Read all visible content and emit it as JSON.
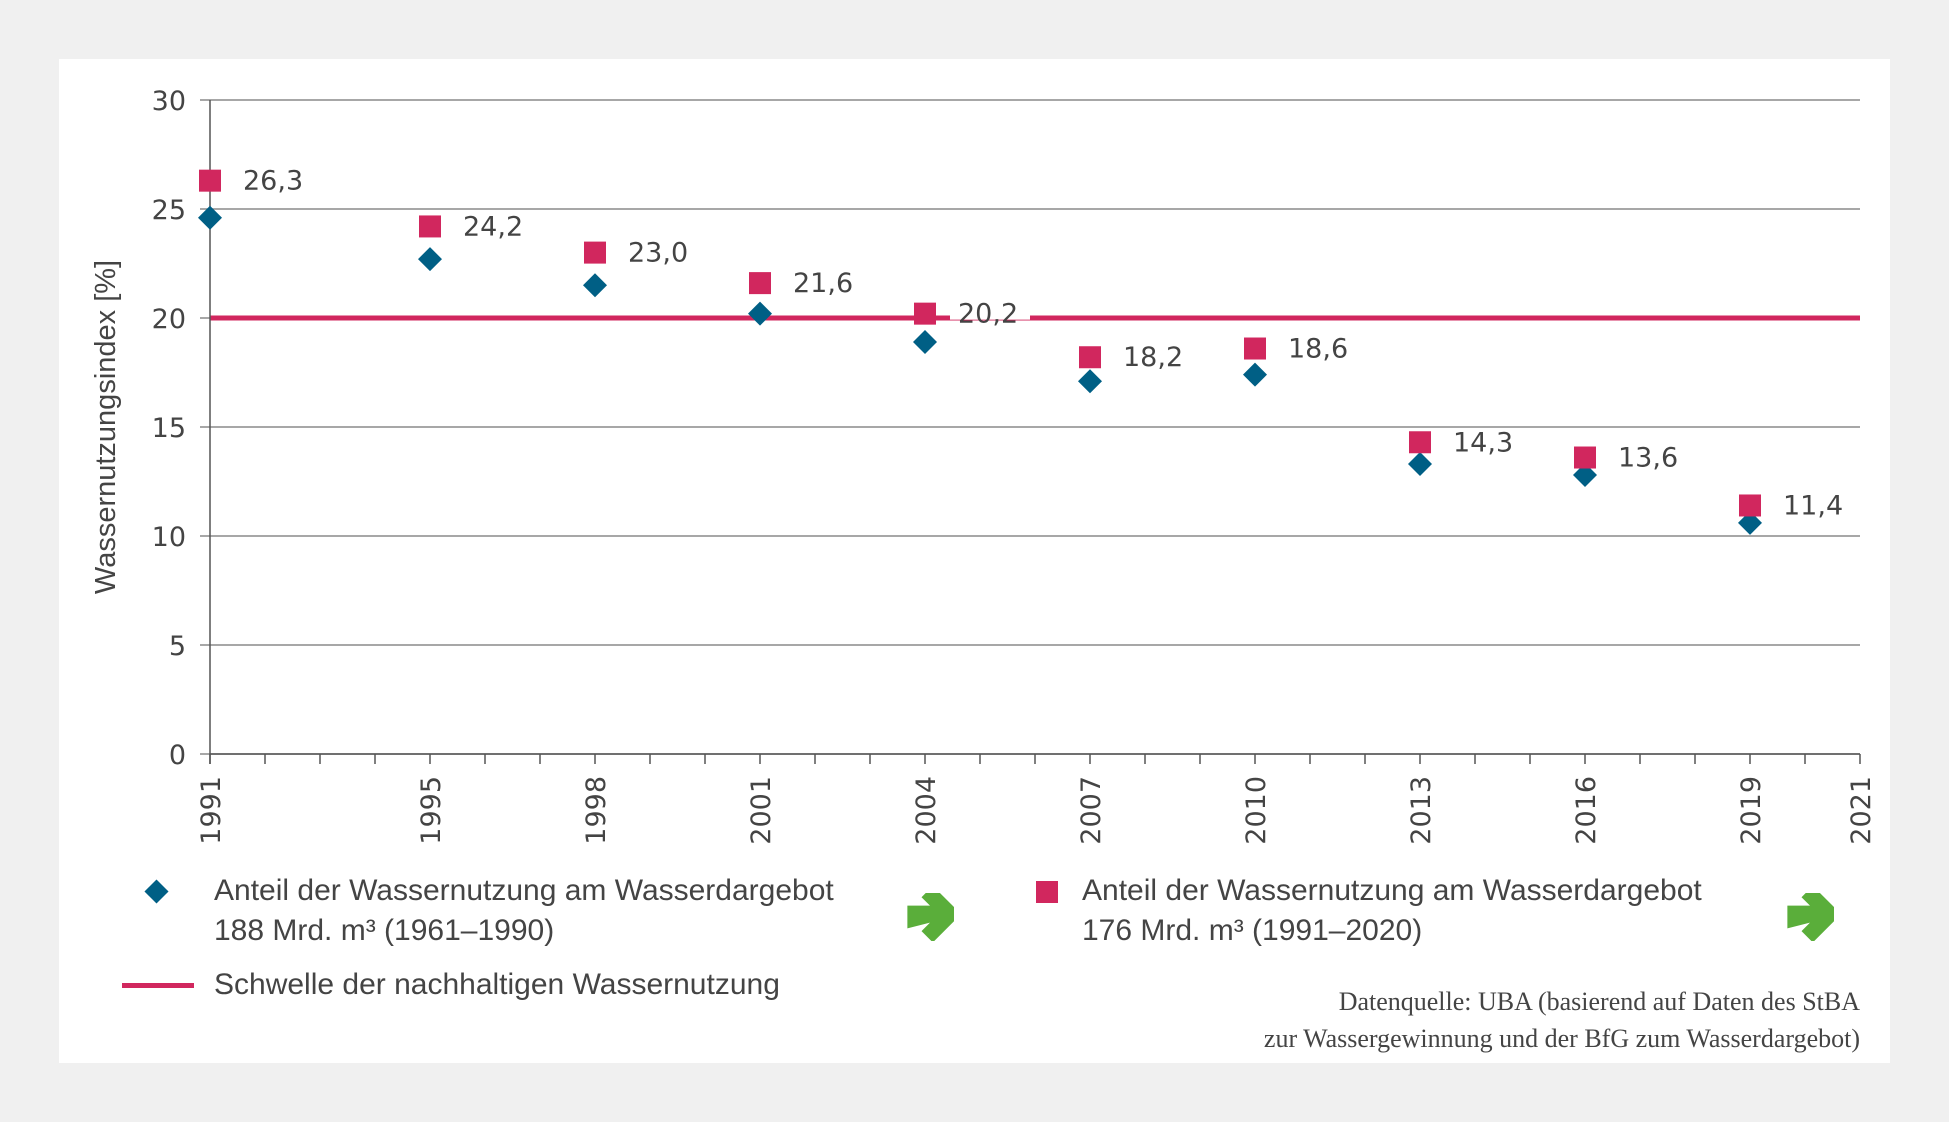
{
  "chart_data": {
    "type": "scatter",
    "title": "",
    "ylabel": "Wassernutzungsindex [%]",
    "xlabel": "",
    "ylim": [
      0,
      30
    ],
    "xlim": [
      1991,
      2021
    ],
    "yticks": [
      0,
      5,
      10,
      15,
      20,
      25,
      30
    ],
    "xtick_labels": [
      "1991",
      "1995",
      "1998",
      "2001",
      "2004",
      "2007",
      "2010",
      "2013",
      "2016",
      "2019",
      "2021"
    ],
    "grid": "horizontal",
    "series": [
      {
        "name": "Anteil der Wassernutzung am Wasserdargebot 188 Mrd. m³ (1961–1990)",
        "marker": "diamond",
        "color": "#005f85",
        "x": [
          1991,
          1995,
          1998,
          2001,
          2004,
          2007,
          2010,
          2013,
          2016,
          2019
        ],
        "values": [
          24.6,
          22.7,
          21.5,
          20.2,
          18.9,
          17.1,
          17.4,
          13.3,
          12.8,
          10.6
        ]
      },
      {
        "name": "Anteil der Wassernutzung am Wasserdargebot 176 Mrd. m³ (1991–2020)",
        "marker": "square",
        "color": "#d1275e",
        "x": [
          1991,
          1995,
          1998,
          2001,
          2004,
          2007,
          2010,
          2013,
          2016,
          2019
        ],
        "values": [
          26.3,
          24.2,
          23.0,
          21.6,
          20.2,
          18.2,
          18.6,
          14.3,
          13.6,
          11.4
        ],
        "labels": [
          "26,3",
          "24,2",
          "23,0",
          "21,6",
          "20,2",
          "18,2",
          "18,6",
          "14,3",
          "13,6",
          "11,4"
        ]
      }
    ],
    "reference_lines": [
      {
        "name": "Schwelle der nachhaltigen Wassernutzung",
        "y": 20,
        "color": "#d1275e"
      }
    ]
  },
  "legend": {
    "series1_line1": "Anteil der Wassernutzung am Wasserdargebot",
    "series1_line2": "188 Mrd. m³ (1961–1990)",
    "series2_line1": "Anteil der Wassernutzung am Wasserdargebot",
    "series2_line2": "176 Mrd. m³ (1991–2020)",
    "threshold": "Schwelle der nachhaltigen Wassernutzung",
    "trend_icon_color": "#5aae3a"
  },
  "source": {
    "line1": "Datenquelle: UBA (basierend auf Daten des StBA",
    "line2": "zur Wassergewinnung und der BfG zum Wasserdargebot)"
  },
  "colors": {
    "background": "#f0f0f0",
    "panel": "#ffffff",
    "grid": "#8a8a8a",
    "text": "#444444"
  }
}
